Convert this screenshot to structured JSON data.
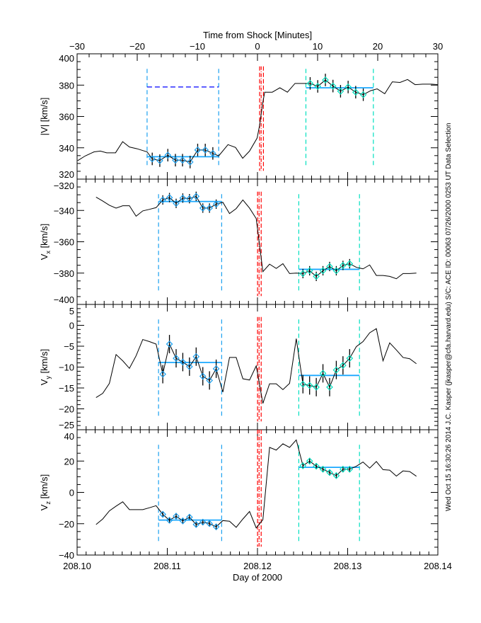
{
  "chart_data": {
    "type": "line",
    "top_axis": {
      "label": "Time from Shock [Minutes]",
      "range": [
        -30,
        30
      ],
      "ticks": [
        -30,
        -20,
        -10,
        0,
        10,
        20,
        30
      ],
      "minor_step": 2
    },
    "bottom_axis": {
      "label": "Day of 2000",
      "range": [
        208.1,
        208.14
      ],
      "ticks": [
        "208.10",
        "208.11",
        "208.12",
        "208.13",
        "208.14"
      ],
      "minor_step": 0.001
    },
    "x_common": {
      "start": 208.1021,
      "step": 0.00074,
      "count": 49
    },
    "colors": {
      "line": "#000000",
      "upstream": "#1aa0f0",
      "downstream": "#00e0c0",
      "mean": "#1aa8ff",
      "shock": "#ff0000",
      "reference": "#0000ff"
    },
    "panels": [
      {
        "ylabel": "|V|",
        "ylabel_sub": "",
        "yunit": "[km/s]",
        "ylim": [
          320,
          400
        ],
        "yticks": [
          320,
          340,
          360,
          380,
          400
        ],
        "minor_step": 5,
        "x": [
          208.10006,
          208.1009,
          208.10188,
          208.10258,
          208.10328,
          208.10426,
          208.10505,
          208.1058,
          208.10664,
          208.10776,
          208.10833,
          208.10917,
          208.11006,
          208.1109,
          208.11169,
          208.11253,
          208.11337,
          208.11421,
          208.11505,
          208.1157,
          208.11673,
          208.11757,
          208.11836,
          208.11912,
          208.11996,
          208.12024,
          208.12057,
          208.1208,
          208.12164,
          208.12248,
          208.12332,
          208.12416,
          208.125,
          208.12584,
          208.12668,
          208.12753,
          208.12837,
          208.12921,
          208.13005,
          208.13089,
          208.13173,
          208.13257,
          208.13327,
          208.13411,
          208.13495,
          208.1358,
          208.13664,
          208.13748,
          208.13832,
          208.1393,
          208.14
        ],
        "y": [
          331.8,
          334.8,
          337.4,
          337.9,
          336.8,
          336.8,
          343.9,
          340.5,
          339.4,
          337.4,
          332.9,
          331.8,
          335.3,
          332.1,
          332.1,
          330.9,
          338.6,
          338.6,
          336.4,
          334.8,
          342.0,
          340.2,
          333.3,
          337.9,
          346.2,
          354.5,
          368.2,
          375.5,
          375.5,
          378.3,
          375.5,
          381.1,
          381.1,
          381.1,
          379.2,
          383.3,
          379.4,
          376.1,
          378.8,
          375.5,
          373.9,
          376.5,
          377.6,
          374.5,
          382.1,
          381.7,
          383.6,
          380.3,
          380.6,
          380.6,
          380.3
        ],
        "up_idx": [
          10,
          18
        ],
        "down_idx": [
          33,
          40
        ],
        "err": 4,
        "up_window": [
          208.10776,
          208.1157
        ],
        "down_window": [
          208.12537,
          208.13285
        ],
        "up_mean": 334.3,
        "down_mean": 378.3,
        "reference_level": 378.8,
        "shock_lines": [
          208.12024,
          208.12041,
          208.12066
        ]
      },
      {
        "ylabel": "V",
        "ylabel_sub": "x",
        "yunit": "[km/s]",
        "ylim": [
          -400,
          -320
        ],
        "yticks": [
          -400,
          -380,
          -360,
          -340,
          -320
        ],
        "minor_step": 5,
        "y": [
          -331.5,
          -334,
          -336.7,
          -338.5,
          -337,
          -337,
          -343.7,
          -340.3,
          -339.3,
          -338.2,
          -333.3,
          -331.8,
          -335.5,
          -332.1,
          -332.5,
          -331,
          -338.5,
          -338.5,
          -336,
          -334.8,
          -342,
          -338.8,
          -333.3,
          -338.5,
          -345.2,
          -379.1,
          -374.3,
          -377,
          -374,
          -380.3,
          -380,
          -380.3,
          -378.5,
          -382.1,
          -378.5,
          -375.8,
          -378.5,
          -375.1,
          -374,
          -376.3,
          -377.3,
          -374.8,
          -381.5,
          -381.5,
          -382.1,
          -383.6,
          -380.3,
          -380.3,
          -380
        ],
        "up_idx": [
          10,
          18
        ],
        "down_idx": [
          31,
          38
        ],
        "err": 3,
        "up_window": [
          208.10903,
          208.11603
        ],
        "down_window": [
          208.12458,
          208.13131
        ],
        "up_mean": -334.3,
        "down_mean": -377.6,
        "shock_lines": [
          208.12001,
          208.12018,
          208.12041
        ]
      },
      {
        "ylabel": "V",
        "ylabel_sub": "y",
        "yunit": "[km/s]",
        "ylim": [
          -25,
          5
        ],
        "yticks": [
          -25,
          -20,
          -15,
          -10,
          -5,
          0,
          5
        ],
        "minor_step": 1,
        "y": [
          -17.3,
          -16.3,
          -13.9,
          -7,
          -8.5,
          -10.3,
          -7.3,
          -3.4,
          -3.9,
          -4.5,
          -11.7,
          -4.5,
          -7.9,
          -8.8,
          -9.9,
          -7.5,
          -12.2,
          -13.2,
          -10.4,
          -16,
          -7.7,
          -7.7,
          -12.8,
          -13.1,
          -9.7,
          -18.7,
          -14,
          -14,
          -15.4,
          -13.9,
          -3.2,
          -14.1,
          -14.4,
          -14.8,
          -11.5,
          -14.8,
          -10.7,
          -9.6,
          -7.9,
          -5.1,
          -3.9,
          -1.8,
          -0.8,
          -8.5,
          -4.2,
          -5.9,
          -7.7,
          -8,
          -9.2
        ],
        "up_idx": [
          10,
          18
        ],
        "down_idx": [
          31,
          38
        ],
        "err": 2.2,
        "up_window": [
          208.10903,
          208.11603
        ],
        "down_window": [
          208.12458,
          208.13131
        ],
        "up_mean": -8.9,
        "down_mean": -12.0,
        "shock_lines": [
          208.12001,
          208.12018,
          208.12041
        ]
      },
      {
        "ylabel": "V",
        "ylabel_sub": "z",
        "yunit": "[km/s]",
        "ylim": [
          -40,
          40
        ],
        "yticks": [
          -40,
          -20,
          0,
          20,
          40
        ],
        "minor_step": 5,
        "y": [
          -20.5,
          -17,
          -11.8,
          -8.8,
          -6,
          -11,
          -11,
          -11,
          -9.8,
          -8.5,
          -14,
          -17.8,
          -15.2,
          -18.2,
          -15.8,
          -20.5,
          -19,
          -19.9,
          -22,
          -18,
          -18.4,
          -22.3,
          -17,
          -12.2,
          -22.7,
          -17.4,
          28.7,
          27,
          31,
          28.7,
          33.5,
          17,
          20,
          16.7,
          14.8,
          12.7,
          10.7,
          14.8,
          14.8,
          16.7,
          19.4,
          15.5,
          19.7,
          14.5,
          14.2,
          10.4,
          13.7,
          13.3,
          10.3
        ],
        "up_idx": [
          10,
          18
        ],
        "down_idx": [
          31,
          38
        ],
        "err": 2,
        "up_window": [
          208.10903,
          208.11603
        ],
        "down_window": [
          208.12458,
          208.13131
        ],
        "up_mean": -17.7,
        "down_mean": 16.0,
        "shock_lines": [
          208.12001,
          208.12018,
          208.12041
        ]
      }
    ]
  },
  "annotation": "Wed Oct 15 16:30:26 2014   J.C. Kasper (jkasper@cfa.harvard.edu)   S/C: ACE ID: 00063 07/26/2000   0253 UT Data Selection"
}
